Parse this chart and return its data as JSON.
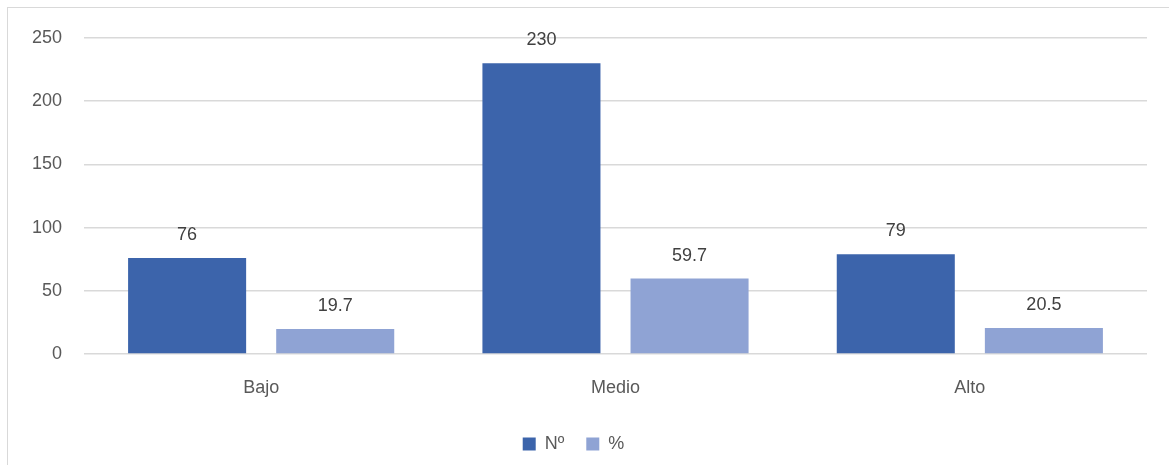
{
  "chart_data": {
    "type": "bar",
    "categories": [
      "Bajo",
      "Medio",
      "Alto"
    ],
    "series": [
      {
        "name": "Nº",
        "color": "#3c64ab",
        "values": [
          76,
          230,
          79
        ]
      },
      {
        "name": "%",
        "color": "#8fa3d4",
        "values": [
          19.7,
          59.7,
          20.5
        ]
      }
    ],
    "ylim": [
      0,
      250
    ],
    "yticks": [
      0,
      50,
      100,
      150,
      200,
      250
    ],
    "grid": "y",
    "legend": "bottom",
    "data_labels": true
  }
}
